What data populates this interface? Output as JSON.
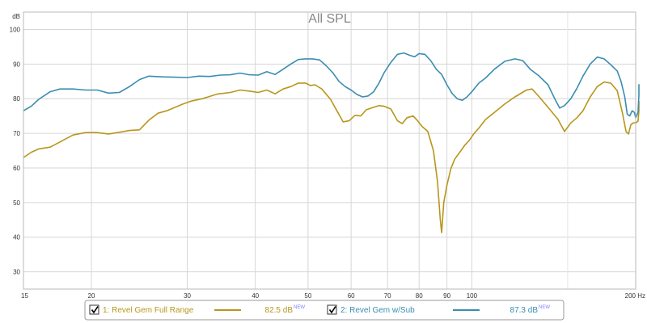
{
  "chart_data": {
    "type": "line",
    "title": "All SPL",
    "ylabel": "dB",
    "xlabel": "",
    "x_unit": "Hz",
    "x_scale": "log",
    "xlim": [
      15,
      200
    ],
    "ylim": [
      25,
      105
    ],
    "grid": true,
    "x_ticks": [
      {
        "value": 15,
        "label": "15"
      },
      {
        "value": 20,
        "label": "20"
      },
      {
        "value": 30,
        "label": "30"
      },
      {
        "value": 40,
        "label": "40"
      },
      {
        "value": 50,
        "label": "50"
      },
      {
        "value": 60,
        "label": "60"
      },
      {
        "value": 70,
        "label": "70"
      },
      {
        "value": 80,
        "label": "80"
      },
      {
        "value": 90,
        "label": "90"
      },
      {
        "value": 100,
        "label": "100"
      },
      {
        "value": 200,
        "label": "200 Hz"
      }
    ],
    "x_minor_grid": [
      150
    ],
    "y_ticks": [
      30,
      40,
      50,
      60,
      70,
      80,
      90,
      100
    ],
    "series": [
      {
        "name": "1: Revel Gem Full Range",
        "color": "#b8961c",
        "checked": true,
        "level": "82.5 dB",
        "badge": "NEW",
        "points": [
          [
            15,
            63
          ],
          [
            15.5,
            64.5
          ],
          [
            16,
            65.5
          ],
          [
            16.8,
            66
          ],
          [
            17.5,
            67.5
          ],
          [
            18.5,
            69.5
          ],
          [
            19.5,
            70.2
          ],
          [
            20.5,
            70.2
          ],
          [
            21.5,
            69.8
          ],
          [
            22.5,
            70.3
          ],
          [
            23.5,
            70.8
          ],
          [
            24.5,
            71
          ],
          [
            25.5,
            73.8
          ],
          [
            26.5,
            75.8
          ],
          [
            27.5,
            76.5
          ],
          [
            28.5,
            77.5
          ],
          [
            29.5,
            78.5
          ],
          [
            30.5,
            79.3
          ],
          [
            32,
            80
          ],
          [
            34,
            81.3
          ],
          [
            36,
            81.8
          ],
          [
            37.5,
            82.5
          ],
          [
            39,
            82.2
          ],
          [
            40.5,
            81.8
          ],
          [
            42,
            82.5
          ],
          [
            43.5,
            81.4
          ],
          [
            45,
            82.8
          ],
          [
            46.5,
            83.5
          ],
          [
            48,
            84.5
          ],
          [
            49.5,
            84.5
          ],
          [
            50.5,
            83.8
          ],
          [
            51.5,
            84
          ],
          [
            53,
            82.8
          ],
          [
            55,
            79.8
          ],
          [
            56.5,
            76.5
          ],
          [
            58,
            73.3
          ],
          [
            59.5,
            73.6
          ],
          [
            61,
            75.2
          ],
          [
            62.5,
            75
          ],
          [
            64,
            76.8
          ],
          [
            66,
            77.5
          ],
          [
            67.5,
            78
          ],
          [
            69,
            77.8
          ],
          [
            71,
            77
          ],
          [
            73,
            73.6
          ],
          [
            74.5,
            72.8
          ],
          [
            76,
            74.5
          ],
          [
            78,
            75
          ],
          [
            79.5,
            73.6
          ],
          [
            81,
            72
          ],
          [
            83,
            70.5
          ],
          [
            85,
            65
          ],
          [
            86.5,
            56
          ],
          [
            87.5,
            45
          ],
          [
            88,
            41.3
          ],
          [
            88.8,
            50
          ],
          [
            90,
            55
          ],
          [
            91.5,
            59.8
          ],
          [
            93,
            62.5
          ],
          [
            95,
            64.5
          ],
          [
            97,
            66.5
          ],
          [
            99,
            68
          ],
          [
            101,
            70
          ],
          [
            103,
            71.5
          ],
          [
            106,
            74
          ],
          [
            110,
            76
          ],
          [
            115,
            78.5
          ],
          [
            120,
            80.5
          ],
          [
            126,
            82.5
          ],
          [
            129,
            82.8
          ],
          [
            133,
            80.5
          ],
          [
            138,
            77.5
          ],
          [
            144,
            74
          ],
          [
            148,
            70.5
          ],
          [
            152,
            73
          ],
          [
            156,
            74.5
          ],
          [
            160,
            76.5
          ],
          [
            165,
            80.5
          ],
          [
            170,
            83.5
          ],
          [
            175,
            84.8
          ],
          [
            180,
            84.5
          ],
          [
            185,
            82.3
          ],
          [
            189,
            76
          ],
          [
            192,
            70.5
          ],
          [
            194,
            69.8
          ],
          [
            196,
            72.5
          ],
          [
            198,
            73
          ],
          [
            200,
            73
          ],
          [
            202,
            73.5
          ],
          [
            205,
            76.5
          ],
          [
            208,
            78.5
          ],
          [
            210,
            79.3
          ]
        ]
      },
      {
        "name": "2: Revel Gem w/Sub",
        "color": "#3a8db0",
        "checked": true,
        "level": "87.3 dB",
        "badge": "NEW",
        "points": [
          [
            15,
            76.5
          ],
          [
            15.5,
            77.8
          ],
          [
            16,
            79.8
          ],
          [
            16.8,
            82
          ],
          [
            17.5,
            82.8
          ],
          [
            18.5,
            82.8
          ],
          [
            19.5,
            82.5
          ],
          [
            20.5,
            82.5
          ],
          [
            21.5,
            81.6
          ],
          [
            22.5,
            81.8
          ],
          [
            23.5,
            83.5
          ],
          [
            24.5,
            85.5
          ],
          [
            25.5,
            86.5
          ],
          [
            27,
            86.3
          ],
          [
            28.5,
            86.2
          ],
          [
            30,
            86.1
          ],
          [
            31.5,
            86.5
          ],
          [
            33,
            86.4
          ],
          [
            34.5,
            86.8
          ],
          [
            36,
            86.9
          ],
          [
            37.5,
            87.4
          ],
          [
            39,
            86.9
          ],
          [
            40.5,
            86.8
          ],
          [
            42,
            87.8
          ],
          [
            43.5,
            87
          ],
          [
            45,
            88.5
          ],
          [
            46.5,
            90
          ],
          [
            48,
            91.3
          ],
          [
            49.5,
            91.5
          ],
          [
            51,
            91.5
          ],
          [
            52.5,
            91.2
          ],
          [
            54,
            89.5
          ],
          [
            55.5,
            87.5
          ],
          [
            57,
            85
          ],
          [
            58.5,
            83.5
          ],
          [
            60,
            82.5
          ],
          [
            61.5,
            81.2
          ],
          [
            63,
            80.5
          ],
          [
            64.5,
            80.8
          ],
          [
            66,
            82
          ],
          [
            67.5,
            84.5
          ],
          [
            69,
            87.5
          ],
          [
            71,
            90.5
          ],
          [
            73,
            92.8
          ],
          [
            75,
            93.2
          ],
          [
            77,
            92.5
          ],
          [
            78.5,
            92.1
          ],
          [
            80,
            93
          ],
          [
            82,
            92.8
          ],
          [
            84,
            91
          ],
          [
            86,
            88.5
          ],
          [
            88,
            87
          ],
          [
            90,
            84
          ],
          [
            92,
            81.5
          ],
          [
            94,
            80
          ],
          [
            96,
            79.5
          ],
          [
            98,
            80.5
          ],
          [
            100,
            82
          ],
          [
            103,
            84.5
          ],
          [
            106,
            86
          ],
          [
            110,
            88.5
          ],
          [
            115,
            90.8
          ],
          [
            120,
            91.5
          ],
          [
            124,
            91
          ],
          [
            128,
            88.5
          ],
          [
            133,
            86.5
          ],
          [
            138,
            84
          ],
          [
            142,
            80
          ],
          [
            145,
            77.3
          ],
          [
            148,
            78
          ],
          [
            152,
            80
          ],
          [
            156,
            83
          ],
          [
            160,
            86.5
          ],
          [
            165,
            90
          ],
          [
            170,
            92
          ],
          [
            175,
            91.5
          ],
          [
            180,
            89.8
          ],
          [
            185,
            88
          ],
          [
            188,
            85
          ],
          [
            191,
            80.5
          ],
          [
            193,
            75.5
          ],
          [
            195,
            75
          ],
          [
            197,
            76.5
          ],
          [
            199,
            76
          ],
          [
            200,
            74.5
          ],
          [
            202,
            76
          ],
          [
            205,
            81
          ],
          [
            208,
            83.5
          ],
          [
            210,
            84.2
          ]
        ]
      }
    ]
  },
  "legend": {
    "items": [
      {
        "label": "1: Revel Gem Full Range",
        "level": "82.5 dB",
        "badge": "NEW"
      },
      {
        "label": "2: Revel Gem w/Sub",
        "level": "87.3 dB",
        "badge": "NEW"
      }
    ]
  }
}
